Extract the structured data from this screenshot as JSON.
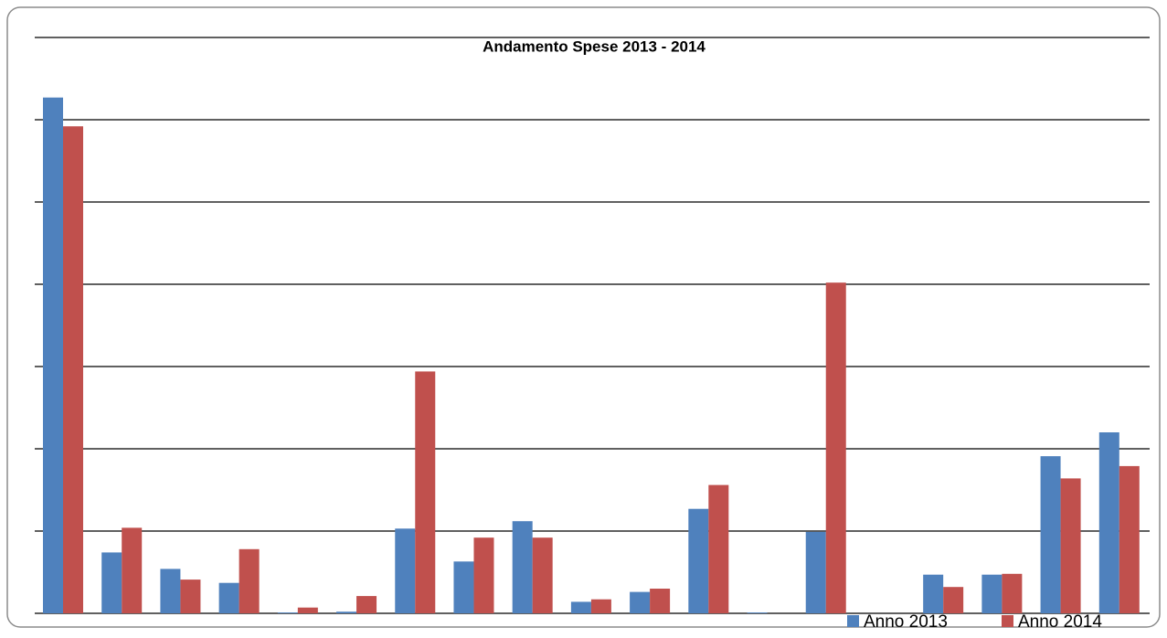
{
  "chart_data": {
    "type": "bar",
    "title": "Andamento Spese 2013 - 2014",
    "categories": [
      null,
      null,
      null,
      null,
      null,
      null,
      null,
      null,
      null,
      null,
      null,
      null,
      null,
      null,
      null,
      null,
      null,
      null,
      null
    ],
    "series": [
      {
        "name": "Anno 2013",
        "color": "#4f81bd",
        "values": [
          6.27,
          0.74,
          0.54,
          0.37,
          0.01,
          0.02,
          1.03,
          0.63,
          1.12,
          0.14,
          0.26,
          1.27,
          0.01,
          0.99,
          0,
          0.47,
          0.47,
          1.91,
          2.2
        ]
      },
      {
        "name": "Anno 2014",
        "color": "#c0504d",
        "values": [
          5.92,
          1.04,
          0.41,
          0.78,
          0.07,
          0.21,
          2.94,
          0.92,
          0.92,
          0.17,
          0.3,
          1.56,
          0,
          4.02,
          0,
          0.32,
          0.48,
          1.64,
          1.79
        ]
      }
    ],
    "ylim": [
      0,
      7
    ],
    "yticks": [
      0,
      1,
      2,
      3,
      4,
      5,
      6,
      7
    ],
    "grid": true,
    "legend": "bottom-right"
  }
}
